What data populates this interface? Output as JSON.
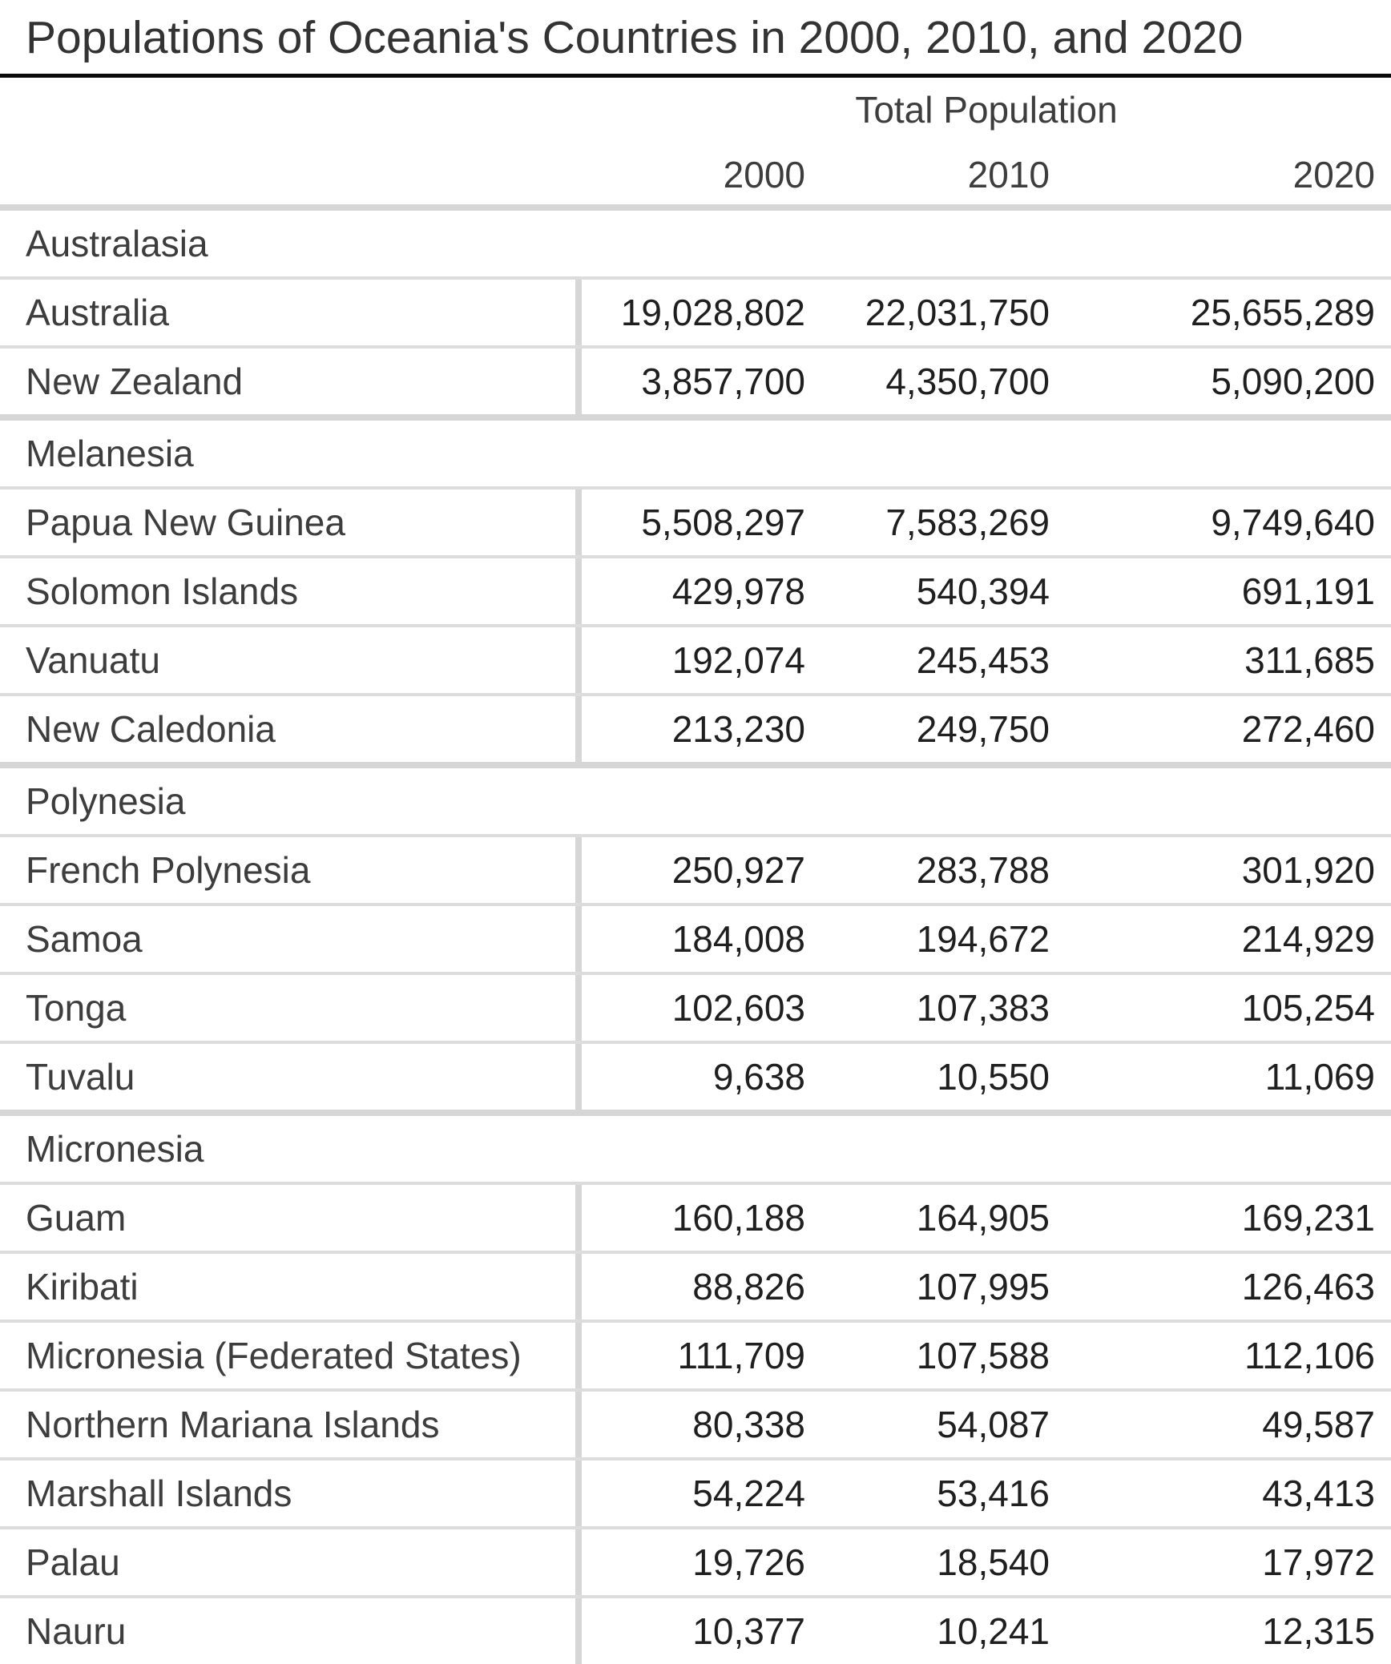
{
  "title": "Populations of Oceania's Countries in 2000, 2010, and 2020",
  "header": {
    "spanner": "Total Population",
    "years": [
      "2000",
      "2010",
      "2020"
    ]
  },
  "sections": [
    {
      "name": "Australasia",
      "rows": [
        {
          "country": "Australia",
          "values": [
            "19,028,802",
            "22,031,750",
            "25,655,289"
          ]
        },
        {
          "country": "New Zealand",
          "values": [
            "3,857,700",
            "4,350,700",
            "5,090,200"
          ]
        }
      ]
    },
    {
      "name": "Melanesia",
      "rows": [
        {
          "country": "Papua New Guinea",
          "values": [
            "5,508,297",
            "7,583,269",
            "9,749,640"
          ]
        },
        {
          "country": "Solomon Islands",
          "values": [
            "429,978",
            "540,394",
            "691,191"
          ]
        },
        {
          "country": "Vanuatu",
          "values": [
            "192,074",
            "245,453",
            "311,685"
          ]
        },
        {
          "country": "New Caledonia",
          "values": [
            "213,230",
            "249,750",
            "272,460"
          ]
        }
      ]
    },
    {
      "name": "Polynesia",
      "rows": [
        {
          "country": "French Polynesia",
          "values": [
            "250,927",
            "283,788",
            "301,920"
          ]
        },
        {
          "country": "Samoa",
          "values": [
            "184,008",
            "194,672",
            "214,929"
          ]
        },
        {
          "country": "Tonga",
          "values": [
            "102,603",
            "107,383",
            "105,254"
          ]
        },
        {
          "country": "Tuvalu",
          "values": [
            "9,638",
            "10,550",
            "11,069"
          ]
        }
      ]
    },
    {
      "name": "Micronesia",
      "rows": [
        {
          "country": "Guam",
          "values": [
            "160,188",
            "164,905",
            "169,231"
          ]
        },
        {
          "country": "Kiribati",
          "values": [
            "88,826",
            "107,995",
            "126,463"
          ]
        },
        {
          "country": "Micronesia (Federated States)",
          "values": [
            "111,709",
            "107,588",
            "112,106"
          ]
        },
        {
          "country": "Northern Mariana Islands",
          "values": [
            "80,338",
            "54,087",
            "49,587"
          ]
        },
        {
          "country": "Marshall Islands",
          "values": [
            "54,224",
            "53,416",
            "43,413"
          ]
        },
        {
          "country": "Palau",
          "values": [
            "19,726",
            "18,540",
            "17,972"
          ]
        },
        {
          "country": "Nauru",
          "values": [
            "10,377",
            "10,241",
            "12,315"
          ]
        }
      ]
    }
  ],
  "colors": {
    "title_text": "#333333",
    "body_text": "#3d3d3d",
    "number_text": "#1f1f1f",
    "title_rule": "#0a0a0a",
    "section_band": "#d6d6d6",
    "row_separator": "#dcdcdc",
    "background": "#ffffff"
  },
  "chart_data": {
    "type": "table",
    "title": "Populations of Oceania's Countries in 2000, 2010, and 2020",
    "column_spanner": "Total Population",
    "columns": [
      "2000",
      "2010",
      "2020"
    ],
    "row_group_column": "country",
    "groups": [
      {
        "group": "Australasia",
        "rows": [
          {
            "label": "Australia",
            "values": [
              19028802,
              22031750,
              25655289
            ]
          },
          {
            "label": "New Zealand",
            "values": [
              3857700,
              4350700,
              5090200
            ]
          }
        ]
      },
      {
        "group": "Melanesia",
        "rows": [
          {
            "label": "Papua New Guinea",
            "values": [
              5508297,
              7583269,
              9749640
            ]
          },
          {
            "label": "Solomon Islands",
            "values": [
              429978,
              540394,
              691191
            ]
          },
          {
            "label": "Vanuatu",
            "values": [
              192074,
              245453,
              311685
            ]
          },
          {
            "label": "New Caledonia",
            "values": [
              213230,
              249750,
              272460
            ]
          }
        ]
      },
      {
        "group": "Polynesia",
        "rows": [
          {
            "label": "French Polynesia",
            "values": [
              250927,
              283788,
              301920
            ]
          },
          {
            "label": "Samoa",
            "values": [
              184008,
              194672,
              214929
            ]
          },
          {
            "label": "Tonga",
            "values": [
              102603,
              107383,
              105254
            ]
          },
          {
            "label": "Tuvalu",
            "values": [
              9638,
              10550,
              11069
            ]
          }
        ]
      },
      {
        "group": "Micronesia",
        "rows": [
          {
            "label": "Guam",
            "values": [
              160188,
              164905,
              169231
            ]
          },
          {
            "label": "Kiribati",
            "values": [
              88826,
              107995,
              126463
            ]
          },
          {
            "label": "Micronesia (Federated States)",
            "values": [
              111709,
              107588,
              112106
            ]
          },
          {
            "label": "Northern Mariana Islands",
            "values": [
              80338,
              54087,
              49587
            ]
          },
          {
            "label": "Marshall Islands",
            "values": [
              54224,
              53416,
              43413
            ]
          },
          {
            "label": "Palau",
            "values": [
              19726,
              18540,
              17972
            ]
          },
          {
            "label": "Nauru",
            "values": [
              10377,
              10241,
              12315
            ]
          }
        ]
      }
    ]
  }
}
